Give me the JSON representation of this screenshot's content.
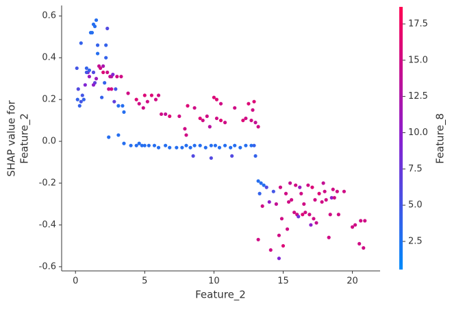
{
  "chart_data": {
    "type": "scatter",
    "xlabel": "Feature_2",
    "ylabel": [
      "SHAP value for",
      "Feature_2"
    ],
    "xlim": [
      -1.0,
      22.0
    ],
    "xticks": [
      0,
      5,
      10,
      15,
      20
    ],
    "ylim": [
      -0.62,
      0.65
    ],
    "yticks": [
      -0.6,
      -0.4,
      -0.2,
      {
        "value": 0,
        "label": "0.0"
      },
      0.2,
      0.4,
      0.6
    ],
    "colorbar": {
      "label": "Feature_8",
      "lim": [
        0.56,
        18.68
      ],
      "ticks": [
        2.5,
        {
          "value": 5,
          "label": "5.0"
        },
        7.5,
        {
          "value": 10,
          "label": "10.0"
        },
        12.5,
        {
          "value": 15,
          "label": "15.0"
        },
        17.5
      ],
      "colors": [
        "#008bfb",
        "#8a1fd0",
        "#ff0052"
      ]
    },
    "x": [
      0.1,
      0.2,
      0.15,
      0.3,
      0.4,
      0.5,
      0.6,
      0.7,
      0.4,
      0.8,
      0.9,
      1.0,
      1.1,
      1.2,
      1.3,
      1.4,
      1.5,
      1.6,
      1.6,
      1.3,
      1.4,
      1.5,
      1.7,
      1.8,
      1.9,
      2.0,
      2.1,
      2.2,
      2.2,
      2.3,
      2.3,
      2.5,
      2.6,
      2.7,
      2.8,
      2.9,
      3.0,
      3.1,
      3.3,
      3.4,
      3.5,
      1.3,
      2.0,
      2.4,
      2.6,
      1.0,
      0.8,
      2.4,
      3.1,
      3.5,
      4.0,
      4.4,
      4.6,
      4.8,
      5.0,
      5.3,
      5.7,
      6.0,
      6.5,
      6.8,
      7.3,
      7.7,
      8.0,
      8.3,
      8.6,
      9.0,
      9.4,
      9.8,
      10.1,
      10.4,
      10.8,
      11.2,
      11.5,
      11.9,
      12.3,
      12.7,
      13.0,
      8.5,
      9.8,
      11.3,
      12.9,
      3.8,
      4.4,
      4.6,
      4.9,
      5.0,
      5.2,
      5.5,
      5.8,
      6.0,
      6.2,
      6.5,
      6.8,
      7.5,
      7.9,
      8.1,
      8.6,
      9.0,
      9.2,
      9.5,
      9.7,
      10.0,
      10.2,
      10.5,
      10.2,
      10.5,
      10.8,
      11.5,
      12.1,
      12.3,
      12.5,
      12.8,
      12.9,
      13.0,
      13.2,
      8.0,
      12.7,
      13.2,
      13.4,
      13.3,
      13.5,
      13.2,
      13.8,
      14.0,
      14.1,
      14.3,
      14.5,
      14.7,
      14.7,
      14.9,
      15.0,
      15.2,
      15.3,
      15.5,
      15.6,
      15.8,
      15.9,
      16.0,
      16.2,
      16.3,
      16.4,
      16.5,
      16.6,
      16.8,
      16.9,
      17.0,
      17.1,
      17.3,
      17.4,
      17.6,
      17.8,
      17.9,
      18.0,
      18.1,
      18.3,
      18.4,
      18.5,
      18.6,
      18.7,
      18.9,
      19.0,
      19.4,
      20.0,
      20.2,
      20.5,
      20.6,
      20.9,
      20.8,
      15.4,
      16.1,
      17.2,
      13.6,
      14.8
    ],
    "values": [
      0.35,
      0.25,
      0.2,
      0.17,
      0.19,
      0.22,
      0.2,
      0.27,
      0.47,
      0.35,
      0.33,
      0.31,
      0.52,
      0.52,
      0.56,
      0.55,
      0.58,
      0.46,
      0.42,
      0.33,
      0.28,
      0.3,
      0.36,
      0.35,
      0.21,
      0.36,
      0.28,
      0.46,
      0.4,
      0.54,
      0.33,
      0.31,
      0.31,
      0.32,
      0.19,
      0.25,
      0.31,
      0.17,
      0.31,
      0.17,
      0.14,
      0.27,
      0.33,
      0.25,
      0.25,
      0.34,
      0.33,
      0.02,
      0.03,
      -0.01,
      -0.02,
      -0.02,
      -0.01,
      -0.02,
      -0.02,
      -0.02,
      -0.02,
      -0.03,
      -0.02,
      -0.03,
      -0.03,
      -0.03,
      -0.02,
      -0.03,
      -0.02,
      -0.02,
      -0.03,
      -0.02,
      -0.02,
      -0.03,
      -0.02,
      -0.03,
      -0.02,
      -0.03,
      -0.02,
      -0.02,
      -0.07,
      -0.07,
      -0.08,
      -0.07,
      -0.02,
      0.23,
      0.2,
      0.18,
      0.16,
      0.22,
      0.19,
      0.22,
      0.2,
      0.22,
      0.13,
      0.13,
      0.12,
      0.12,
      0.06,
      0.17,
      0.16,
      0.11,
      0.1,
      0.12,
      0.07,
      0.21,
      0.2,
      0.18,
      0.11,
      0.1,
      0.09,
      0.16,
      0.1,
      0.11,
      0.18,
      0.15,
      0.19,
      0.09,
      0.07,
      0.03,
      0.1,
      -0.19,
      -0.2,
      -0.25,
      -0.31,
      -0.47,
      -0.22,
      -0.29,
      -0.52,
      -0.24,
      -0.3,
      -0.45,
      -0.56,
      -0.37,
      -0.5,
      -0.25,
      -0.42,
      -0.2,
      -0.28,
      -0.34,
      -0.21,
      -0.35,
      -0.22,
      -0.25,
      -0.35,
      -0.3,
      -0.34,
      -0.21,
      -0.35,
      -0.4,
      -0.22,
      -0.28,
      -0.39,
      -0.25,
      -0.29,
      -0.2,
      -0.24,
      -0.28,
      -0.46,
      -0.35,
      -0.27,
      -0.23,
      -0.27,
      -0.24,
      -0.35,
      -0.24,
      -0.41,
      -0.4,
      -0.49,
      -0.38,
      -0.38,
      -0.51,
      -0.29,
      -0.36,
      -0.37,
      -0.21,
      -0.22
    ],
    "color_values": [
      5,
      6,
      4,
      4,
      5,
      5,
      4,
      9,
      4,
      4,
      10,
      11,
      3,
      3,
      3,
      3,
      3,
      4,
      3,
      6,
      7,
      11,
      14,
      15,
      4,
      12,
      4,
      4,
      4,
      6,
      15,
      14,
      13,
      9,
      7,
      5,
      15,
      3,
      15,
      3,
      3,
      10,
      16,
      14,
      15,
      4,
      5,
      3,
      3,
      3,
      3,
      3,
      3,
      3,
      3,
      3,
      3,
      3,
      3,
      3,
      3,
      3,
      3,
      3,
      3,
      3,
      3,
      3,
      3,
      3,
      3,
      3,
      3,
      3,
      3,
      3,
      4,
      6,
      6,
      6,
      4,
      15,
      16,
      15,
      15,
      16,
      15,
      16,
      15,
      15,
      15,
      14,
      16,
      15,
      15,
      16,
      15,
      16,
      15,
      15,
      13,
      16,
      16,
      15,
      15,
      16,
      15,
      15,
      16,
      15,
      16,
      15,
      16,
      14,
      15,
      15,
      15,
      3,
      3,
      4,
      15,
      15,
      6,
      10,
      15,
      5,
      14,
      15,
      9,
      15,
      16,
      15,
      15,
      14,
      15,
      15,
      15,
      15,
      11,
      15,
      16,
      15,
      15,
      15,
      15,
      10,
      16,
      15,
      14,
      16,
      15,
      14,
      15,
      15,
      15,
      15,
      10,
      15,
      15,
      15,
      15,
      15,
      15,
      15,
      15,
      15,
      15,
      15,
      15,
      8,
      15,
      3,
      15
    ]
  }
}
